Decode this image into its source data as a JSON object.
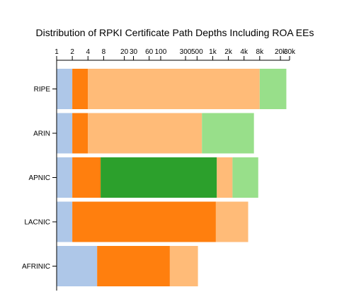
{
  "chart_data": {
    "type": "bar",
    "orientation": "horizontal",
    "stacked": true,
    "x_scale": "log",
    "title": "Distribution of RPKI Certificate Path Depths Including ROA EEs",
    "xlabel": "",
    "ylabel": "",
    "xlim": [
      1,
      30000
    ],
    "x_ticks": [
      1,
      2,
      4,
      8,
      20,
      30,
      60,
      100,
      300,
      500,
      1000,
      2000,
      4000,
      8000,
      20000,
      30000
    ],
    "x_tick_labels": [
      "1",
      "2",
      "4",
      "8",
      "20",
      "30",
      "60",
      "100",
      "300",
      "500",
      "1k",
      "2k",
      "4k",
      "8k",
      "20k",
      "30k"
    ],
    "grid": false,
    "legend": "none",
    "categories": [
      "RIPE",
      "ARIN",
      "APNIC",
      "LACNIC",
      "AFRINIC"
    ],
    "segment_colors": [
      "#aec7e8",
      "#ff7f0e",
      "#ffbb78",
      "#2ca02c",
      "#98df8a"
    ],
    "bars": [
      {
        "category": "RIPE",
        "segments": [
          {
            "start": 1,
            "end": 2,
            "color": "#aec7e8"
          },
          {
            "start": 2,
            "end": 4,
            "color": "#ff7f0e"
          },
          {
            "start": 4,
            "end": 8000,
            "color": "#ffbb78"
          },
          {
            "start": 8000,
            "end": 26000,
            "color": "#98df8a"
          }
        ]
      },
      {
        "category": "ARIN",
        "segments": [
          {
            "start": 1,
            "end": 2,
            "color": "#aec7e8"
          },
          {
            "start": 2,
            "end": 4,
            "color": "#ff7f0e"
          },
          {
            "start": 4,
            "end": 620,
            "color": "#ffbb78"
          },
          {
            "start": 620,
            "end": 6200,
            "color": "#98df8a"
          }
        ]
      },
      {
        "category": "APNIC",
        "segments": [
          {
            "start": 1,
            "end": 2,
            "color": "#aec7e8"
          },
          {
            "start": 2,
            "end": 7,
            "color": "#ff7f0e"
          },
          {
            "start": 7,
            "end": 1200,
            "color": "#2ca02c"
          },
          {
            "start": 1200,
            "end": 2400,
            "color": "#ffbb78"
          },
          {
            "start": 2400,
            "end": 7500,
            "color": "#98df8a"
          }
        ]
      },
      {
        "category": "LACNIC",
        "segments": [
          {
            "start": 1,
            "end": 2,
            "color": "#aec7e8"
          },
          {
            "start": 2,
            "end": 1150,
            "color": "#ff7f0e"
          },
          {
            "start": 1150,
            "end": 4800,
            "color": "#ffbb78"
          }
        ]
      },
      {
        "category": "AFRINIC",
        "segments": [
          {
            "start": 1,
            "end": 6,
            "color": "#aec7e8"
          },
          {
            "start": 6,
            "end": 150,
            "color": "#ff7f0e"
          },
          {
            "start": 150,
            "end": 520,
            "color": "#ffbb78"
          }
        ]
      }
    ]
  }
}
